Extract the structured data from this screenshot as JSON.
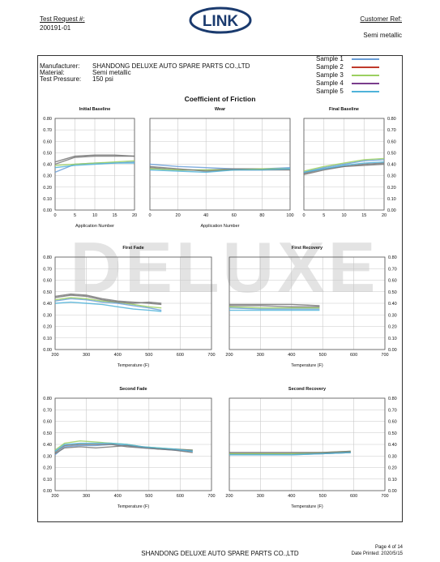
{
  "header": {
    "test_request_label": "Test Request #:",
    "test_request_value": "200191-01",
    "customer_ref_label": "Customer Ref:",
    "customer_ref_value": "Semi metallic",
    "logo_text": "LINK"
  },
  "info": {
    "manufacturer_label": "Manufacturer:",
    "manufacturer_value": "SHANDONG DELUXE AUTO SPARE PARTS CO.,LTD",
    "material_label": "Material:",
    "material_value": "Semi metallic",
    "pressure_label": "Test Pressure:",
    "pressure_value": "150 psi"
  },
  "legend": [
    {
      "name": "Sample 1",
      "color": "#6a9fd8"
    },
    {
      "name": "Sample 2",
      "color": "#c0392b"
    },
    {
      "name": "Sample 3",
      "color": "#9bd060"
    },
    {
      "name": "Sample 4",
      "color": "#7a3d8c"
    },
    {
      "name": "Sample 5",
      "color": "#4fb3d9"
    }
  ],
  "main_title": "Coefficient of Friction",
  "watermark_text": "DELUXE",
  "footer": {
    "company": "SHANDONG DELUXE AUTO SPARE PARTS CO.,LTD",
    "page": "Page 4 of 14",
    "date": "Date Printed: 2020/5/15"
  },
  "chart_data": [
    {
      "type": "line",
      "title": "Initial Baseline",
      "xlabel": "Application Number",
      "xlim": [
        0,
        20
      ],
      "ylim": [
        0,
        0.8
      ],
      "x_ticks": [
        0,
        5,
        10,
        15,
        20
      ],
      "series": [
        {
          "x": [
            0,
            5,
            10,
            15,
            20
          ],
          "values": [
            0.33,
            0.4,
            0.41,
            0.41,
            0.42
          ]
        },
        {
          "x": [
            0,
            5,
            10,
            15,
            20
          ],
          "values": [
            0.42,
            0.47,
            0.48,
            0.48,
            0.47
          ]
        },
        {
          "x": [
            0,
            5,
            10,
            15,
            20
          ],
          "values": [
            0.39,
            0.4,
            0.41,
            0.42,
            0.43
          ]
        },
        {
          "x": [
            0,
            5,
            10,
            15,
            20
          ],
          "values": [
            0.4,
            0.46,
            0.47,
            0.47,
            0.47
          ]
        },
        {
          "x": [
            0,
            5,
            10,
            15,
            20
          ],
          "values": [
            0.37,
            0.39,
            0.4,
            0.41,
            0.41
          ]
        }
      ]
    },
    {
      "type": "line",
      "title": "Wear",
      "xlabel": "Application Number",
      "xlim": [
        0,
        100
      ],
      "ylim": [
        0,
        0.8
      ],
      "x_ticks": [
        0,
        20,
        40,
        60,
        80,
        100
      ],
      "series": [
        {
          "x": [
            0,
            20,
            40,
            60,
            80,
            100
          ],
          "values": [
            0.4,
            0.38,
            0.37,
            0.36,
            0.36,
            0.37
          ]
        },
        {
          "x": [
            0,
            20,
            40,
            60,
            80,
            100
          ],
          "values": [
            0.37,
            0.35,
            0.35,
            0.36,
            0.36,
            0.36
          ]
        },
        {
          "x": [
            0,
            20,
            40,
            60,
            80,
            100
          ],
          "values": [
            0.36,
            0.35,
            0.35,
            0.35,
            0.36,
            0.36
          ]
        },
        {
          "x": [
            0,
            20,
            40,
            60,
            80,
            100
          ],
          "values": [
            0.38,
            0.36,
            0.34,
            0.35,
            0.35,
            0.35
          ]
        },
        {
          "x": [
            0,
            20,
            40,
            60,
            80,
            100
          ],
          "values": [
            0.35,
            0.34,
            0.33,
            0.35,
            0.35,
            0.36
          ]
        }
      ]
    },
    {
      "type": "line",
      "title": "Final Baseline",
      "xlabel": "",
      "xlim": [
        0,
        20
      ],
      "ylim": [
        0,
        0.8
      ],
      "x_ticks": [
        0,
        5,
        10,
        15,
        20
      ],
      "series": [
        {
          "x": [
            0,
            5,
            10,
            15,
            20
          ],
          "values": [
            0.33,
            0.37,
            0.4,
            0.43,
            0.44
          ]
        },
        {
          "x": [
            0,
            5,
            10,
            15,
            20
          ],
          "values": [
            0.32,
            0.36,
            0.38,
            0.4,
            0.41
          ]
        },
        {
          "x": [
            0,
            5,
            10,
            15,
            20
          ],
          "values": [
            0.34,
            0.38,
            0.41,
            0.44,
            0.45
          ]
        },
        {
          "x": [
            0,
            5,
            10,
            15,
            20
          ],
          "values": [
            0.31,
            0.35,
            0.38,
            0.39,
            0.4
          ]
        },
        {
          "x": [
            0,
            5,
            10,
            15,
            20
          ],
          "values": [
            0.33,
            0.36,
            0.39,
            0.41,
            0.42
          ]
        }
      ]
    },
    {
      "type": "line",
      "title": "First Fade",
      "xlabel": "Temperature (F)",
      "xlim": [
        200,
        700
      ],
      "ylim": [
        0,
        0.8
      ],
      "x_ticks": [
        200,
        300,
        400,
        500,
        600,
        700
      ],
      "series": [
        {
          "x": [
            200,
            250,
            300,
            350,
            400,
            450,
            500,
            540
          ],
          "values": [
            0.42,
            0.44,
            0.43,
            0.41,
            0.4,
            0.38,
            0.36,
            0.34
          ]
        },
        {
          "x": [
            200,
            250,
            300,
            350,
            400,
            450,
            500,
            540
          ],
          "values": [
            0.46,
            0.48,
            0.47,
            0.44,
            0.42,
            0.41,
            0.4,
            0.39
          ]
        },
        {
          "x": [
            200,
            250,
            300,
            350,
            400,
            450,
            500,
            540
          ],
          "values": [
            0.43,
            0.45,
            0.44,
            0.42,
            0.41,
            0.39,
            0.37,
            0.36
          ]
        },
        {
          "x": [
            200,
            250,
            300,
            350,
            400,
            450,
            500,
            540
          ],
          "values": [
            0.45,
            0.47,
            0.46,
            0.43,
            0.41,
            0.4,
            0.41,
            0.4
          ]
        },
        {
          "x": [
            200,
            250,
            300,
            350,
            400,
            450,
            500,
            540
          ],
          "values": [
            0.4,
            0.41,
            0.4,
            0.39,
            0.37,
            0.35,
            0.34,
            0.33
          ]
        }
      ]
    },
    {
      "type": "line",
      "title": "First Recovery",
      "xlabel": "Temperature (F)",
      "xlim": [
        200,
        700
      ],
      "ylim": [
        0,
        0.8
      ],
      "x_ticks": [
        200,
        300,
        400,
        500,
        600,
        700
      ],
      "series": [
        {
          "x": [
            200,
            300,
            400,
            490
          ],
          "values": [
            0.36,
            0.35,
            0.35,
            0.35
          ]
        },
        {
          "x": [
            200,
            300,
            400,
            490
          ],
          "values": [
            0.38,
            0.38,
            0.37,
            0.37
          ]
        },
        {
          "x": [
            200,
            300,
            400,
            490
          ],
          "values": [
            0.37,
            0.36,
            0.36,
            0.36
          ]
        },
        {
          "x": [
            200,
            300,
            400,
            490
          ],
          "values": [
            0.39,
            0.39,
            0.39,
            0.38
          ]
        },
        {
          "x": [
            200,
            300,
            400,
            490
          ],
          "values": [
            0.34,
            0.34,
            0.34,
            0.34
          ]
        }
      ]
    },
    {
      "type": "line",
      "title": "Second Fade",
      "xlabel": "Temperature (F)",
      "xlim": [
        200,
        700
      ],
      "ylim": [
        0,
        0.8
      ],
      "x_ticks": [
        200,
        300,
        400,
        500,
        600,
        700
      ],
      "series": [
        {
          "x": [
            200,
            230,
            280,
            330,
            380,
            430,
            480,
            530,
            580,
            640
          ],
          "values": [
            0.31,
            0.38,
            0.39,
            0.39,
            0.4,
            0.39,
            0.37,
            0.36,
            0.35,
            0.34
          ]
        },
        {
          "x": [
            200,
            230,
            280,
            330,
            380,
            430,
            480,
            530,
            580,
            640
          ],
          "values": [
            0.33,
            0.39,
            0.4,
            0.4,
            0.4,
            0.38,
            0.37,
            0.36,
            0.35,
            0.33
          ]
        },
        {
          "x": [
            200,
            230,
            280,
            330,
            380,
            430,
            480,
            530,
            580,
            640
          ],
          "values": [
            0.35,
            0.41,
            0.43,
            0.42,
            0.41,
            0.4,
            0.38,
            0.37,
            0.36,
            0.35
          ]
        },
        {
          "x": [
            200,
            230,
            280,
            330,
            380,
            430,
            480,
            530,
            580,
            640
          ],
          "values": [
            0.32,
            0.37,
            0.38,
            0.37,
            0.38,
            0.39,
            0.38,
            0.36,
            0.36,
            0.35
          ]
        },
        {
          "x": [
            200,
            230,
            280,
            330,
            380,
            430,
            480,
            530,
            580,
            640
          ],
          "values": [
            0.34,
            0.4,
            0.41,
            0.41,
            0.41,
            0.4,
            0.38,
            0.37,
            0.36,
            0.34
          ]
        }
      ]
    },
    {
      "type": "line",
      "title": "Second Recovery",
      "xlabel": "Temperature (F)",
      "xlim": [
        200,
        700
      ],
      "ylim": [
        0,
        0.8
      ],
      "x_ticks": [
        200,
        300,
        400,
        500,
        600,
        700
      ],
      "series": [
        {
          "x": [
            200,
            300,
            400,
            500,
            590
          ],
          "values": [
            0.31,
            0.31,
            0.31,
            0.32,
            0.33
          ]
        },
        {
          "x": [
            200,
            300,
            400,
            500,
            590
          ],
          "values": [
            0.32,
            0.32,
            0.32,
            0.32,
            0.33
          ]
        },
        {
          "x": [
            200,
            300,
            400,
            500,
            590
          ],
          "values": [
            0.32,
            0.32,
            0.32,
            0.33,
            0.34
          ]
        },
        {
          "x": [
            200,
            300,
            400,
            500,
            590
          ],
          "values": [
            0.33,
            0.33,
            0.33,
            0.33,
            0.34
          ]
        },
        {
          "x": [
            200,
            300,
            400,
            500,
            590
          ],
          "values": [
            0.31,
            0.31,
            0.31,
            0.32,
            0.33
          ]
        }
      ]
    }
  ]
}
